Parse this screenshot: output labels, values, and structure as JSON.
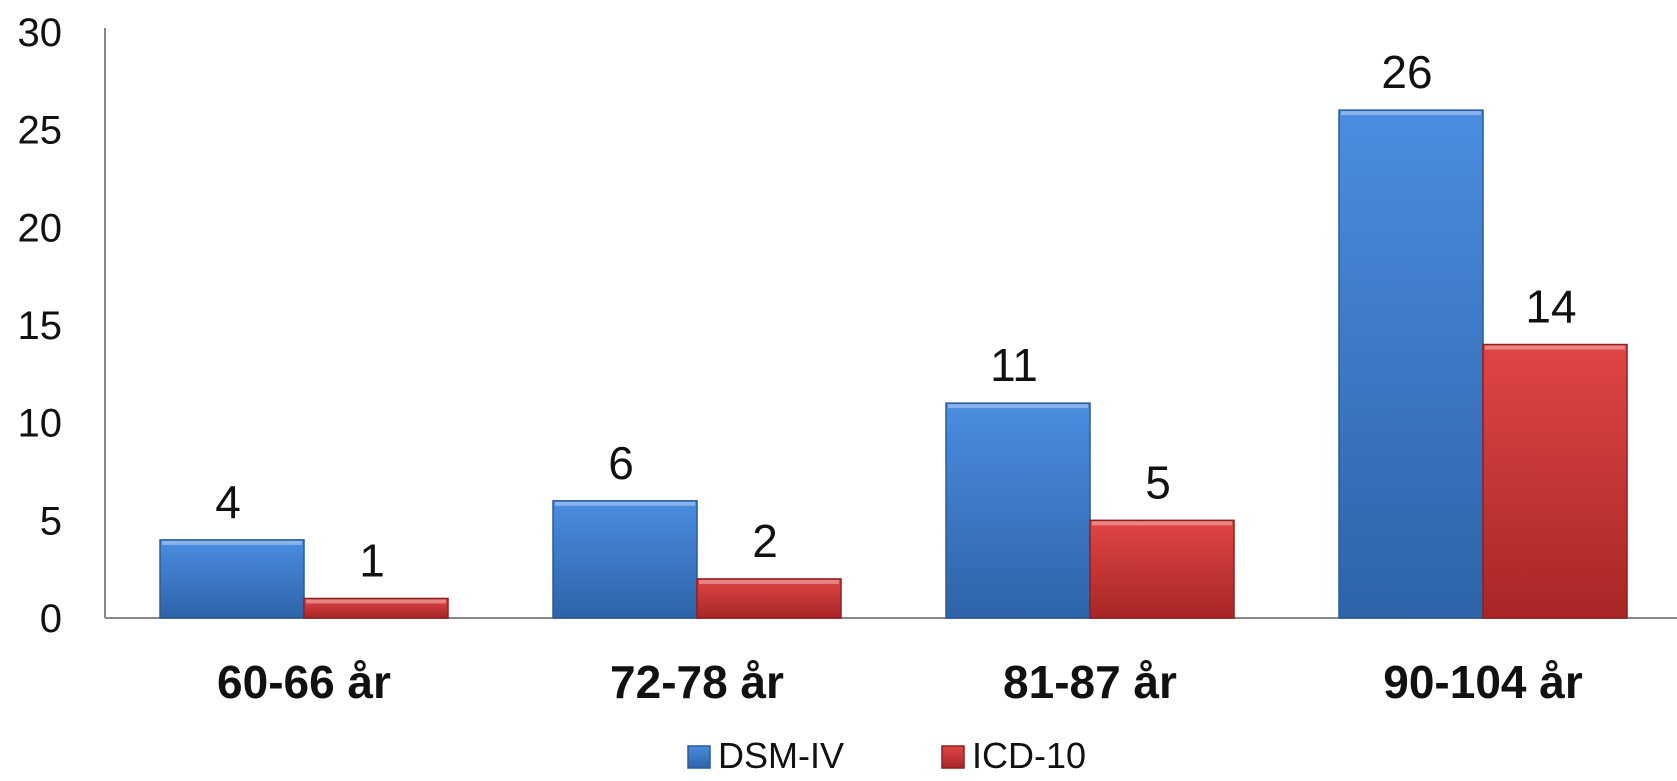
{
  "chart_data": {
    "type": "bar",
    "title": "",
    "xlabel": "",
    "ylabel": "",
    "categories": [
      "60-66 år",
      "72-78 år",
      "81-87 år",
      "90-104 år"
    ],
    "series": [
      {
        "name": "DSM-IV",
        "values": [
          4,
          6,
          11,
          26
        ],
        "color": "#3F7FCF"
      },
      {
        "name": "ICD-10",
        "values": [
          1,
          2,
          5,
          14
        ],
        "color": "#D03A3A"
      }
    ],
    "data_labels": {
      "DSM-IV": [
        "4",
        "6",
        "11",
        "26"
      ],
      "ICD-10": [
        "1",
        "2",
        "5",
        "14"
      ]
    },
    "ylim": [
      0,
      30
    ],
    "yticks": [
      0,
      5,
      10,
      15,
      20,
      25,
      30
    ],
    "grid": false,
    "legend_position": "bottom"
  },
  "legend": {
    "items": [
      {
        "label": "DSM-IV",
        "color": "#3F7FCF"
      },
      {
        "label": "ICD-10",
        "color": "#D03A3A"
      }
    ]
  }
}
